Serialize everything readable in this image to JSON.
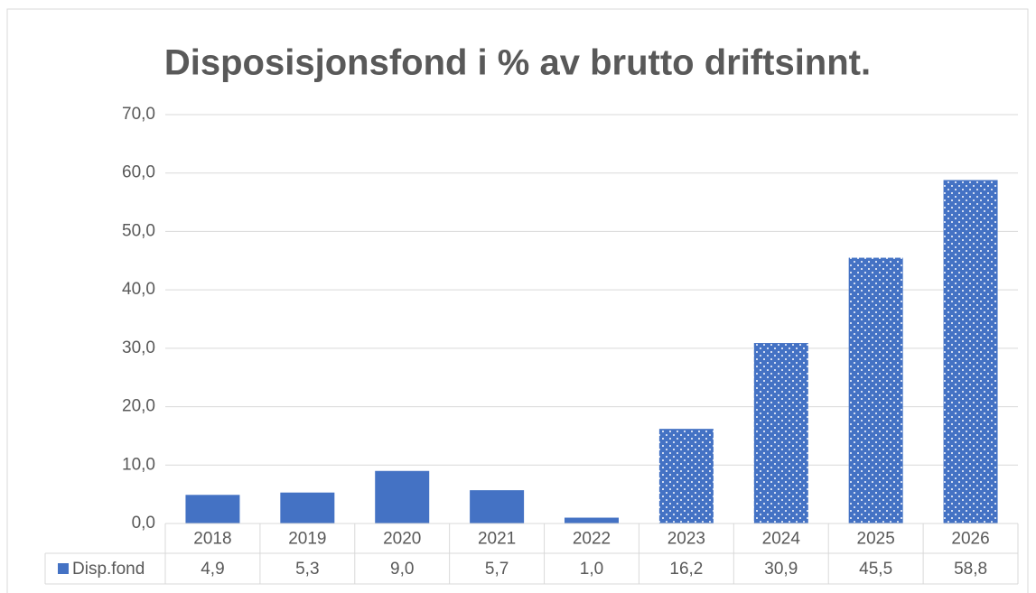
{
  "chart_data": {
    "type": "bar",
    "title": "Disposisjonsfond i % av brutto driftsinnt.",
    "categories": [
      "2018",
      "2019",
      "2020",
      "2021",
      "2022",
      "2023",
      "2024",
      "2025",
      "2026"
    ],
    "series": [
      {
        "name": "Disp.fond",
        "color": "#4472c4",
        "values": [
          4.9,
          5.3,
          9.0,
          5.7,
          1.0,
          16.2,
          30.9,
          45.5,
          58.8
        ],
        "value_labels": [
          "4,9",
          "5,3",
          "9,0",
          "5,7",
          "1,0",
          "16,2",
          "30,9",
          "45,5",
          "58,8"
        ],
        "patterns": [
          "solid",
          "solid",
          "solid",
          "solid",
          "solid",
          "dotted",
          "dotted",
          "dotted",
          "dotted"
        ]
      }
    ],
    "ylim": [
      0,
      70
    ],
    "yticks": [
      {
        "value": 0,
        "label": "0,0"
      },
      {
        "value": 10,
        "label": "10,0"
      },
      {
        "value": 20,
        "label": "20,0"
      },
      {
        "value": 30,
        "label": "30,0"
      },
      {
        "value": 40,
        "label": "40,0"
      },
      {
        "value": 50,
        "label": "50,0"
      },
      {
        "value": 60,
        "label": "60,0"
      },
      {
        "value": 70,
        "label": "70,0"
      }
    ],
    "grid": true,
    "data_table": true
  }
}
